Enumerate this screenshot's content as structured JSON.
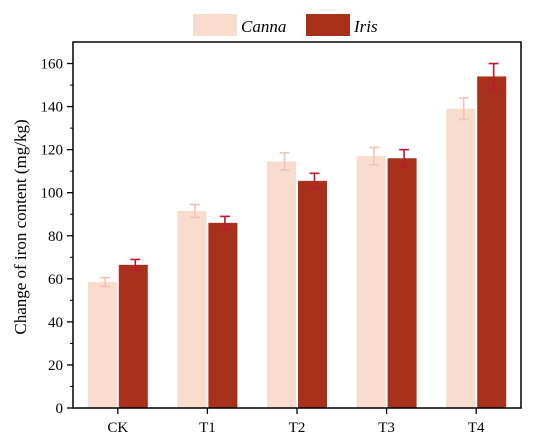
{
  "chart_data": {
    "type": "bar",
    "title": "",
    "xlabel": "",
    "ylabel": "Change of iron content (mg/kg)",
    "categories": [
      "CK",
      "T1",
      "T2",
      "T3",
      "T4"
    ],
    "ylim": [
      0,
      170
    ],
    "yticks": [
      "0",
      "20",
      "40",
      "60",
      "80",
      "100",
      "120",
      "140",
      "160"
    ],
    "legend_position": "top-center",
    "grid": false,
    "series": [
      {
        "name": "Canna",
        "color": "#f8dccd",
        "error_color": "#f0c4b4",
        "values": [
          58.5,
          91.5,
          114.5,
          117,
          139
        ],
        "errors": [
          2,
          3,
          4,
          4,
          5
        ]
      },
      {
        "name": "Iris",
        "color": "#a8311c",
        "error_color": "#c0182d",
        "values": [
          66.5,
          86,
          105.5,
          116,
          154
        ],
        "errors": [
          2.5,
          3,
          3.5,
          4,
          6
        ]
      }
    ]
  }
}
